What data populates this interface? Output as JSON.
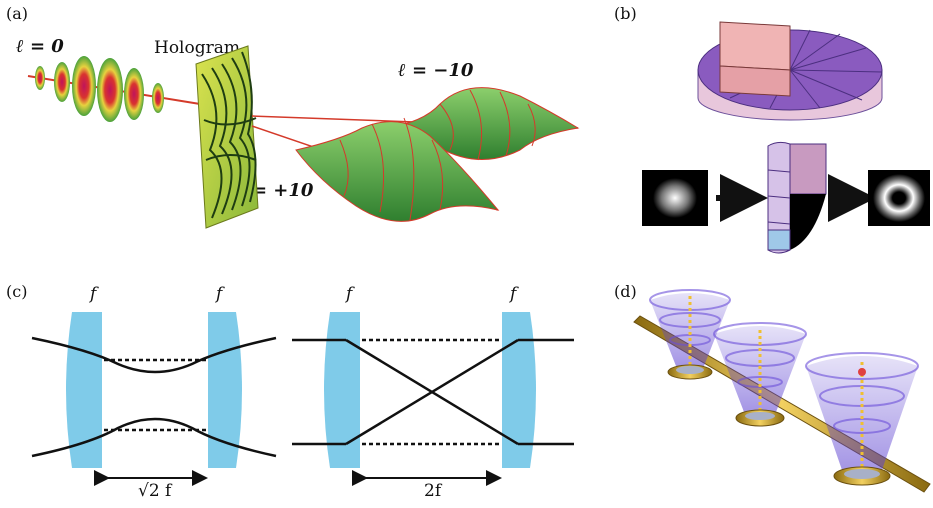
{
  "panels": {
    "a": {
      "label": "(a)",
      "ell0": "ℓ = 0",
      "hologram": "Hologram",
      "ell_minus": "ℓ = −10",
      "ell_plus": "ℓ = +10"
    },
    "b": {
      "label": "(b)"
    },
    "c": {
      "label": "(c)",
      "f_labels": [
        "f",
        "f",
        "f",
        "f"
      ],
      "left_distance": "√2 f",
      "right_distance": "2f"
    },
    "d": {
      "label": "(d)"
    }
  },
  "colors": {
    "lens_blue": "#7fcbe9",
    "beam_red": "#d43a2a",
    "helix_green": "#3f9b3a",
    "hologram_yellow": "#c8d84a",
    "pie_purple": "#8a5bbf",
    "gold": "#d4a420"
  }
}
